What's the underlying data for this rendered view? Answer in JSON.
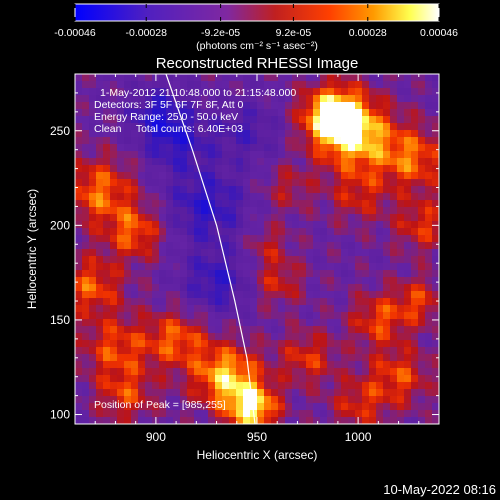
{
  "chart_data": {
    "type": "heatmap",
    "title": "Reconstructed RHESSI Image",
    "xlabel": "Heliocentric X (arcsec)",
    "ylabel": "Heliocentric Y (arcsec)",
    "xlim": [
      860,
      1040
    ],
    "ylim": [
      95,
      280
    ],
    "x_ticks": [
      900,
      950,
      1000
    ],
    "y_ticks": [
      100,
      150,
      200,
      250
    ],
    "colorbar": {
      "tick_labels": [
        "-0.00046",
        "-0.00028",
        "-9.2e-05",
        "9.2e-05",
        "0.00028",
        "0.00046"
      ],
      "tick_values": [
        -0.00046,
        -0.00028,
        -9.2e-05,
        9.2e-05,
        0.00028,
        0.00046
      ],
      "range": [
        -0.00046,
        0.00046
      ],
      "unit_label": "(photons cm⁻² s⁻¹ asec⁻²)",
      "colormap": [
        "#0000ff",
        "#6020b0",
        "#8030a0",
        "#b02020",
        "#ff4000",
        "#ffa000",
        "#ffff60",
        "#ffffff"
      ]
    },
    "annotations": {
      "time_range": "1-May-2012 21:10:48.000 to 21:15:48.000",
      "detectors": "Detectors: 3F 5F 6F 7F 8F, Att 0",
      "energy_range": "Energy Range: 25.0 - 50.0 keV",
      "clean_counts": "Clean     Total counts: 6.40E+03",
      "peak_position": "Position of Peak = [985,255]"
    },
    "peak": {
      "x": 985,
      "y": 255
    },
    "limb_curve": [
      [
        949,
        95
      ],
      [
        945,
        130
      ],
      [
        939,
        160
      ],
      [
        930,
        200
      ],
      [
        918,
        240
      ],
      [
        905,
        280
      ]
    ],
    "emission_regions": [
      {
        "x": 988,
        "y": 258,
        "intensity": 1.0,
        "spread": 11
      },
      {
        "x": 1000,
        "y": 246,
        "intensity": 0.7,
        "spread": 14
      },
      {
        "x": 1028,
        "y": 235,
        "intensity": 0.55,
        "spread": 12
      },
      {
        "x": 1032,
        "y": 200,
        "intensity": 0.45,
        "spread": 10
      },
      {
        "x": 1000,
        "y": 215,
        "intensity": 0.35,
        "spread": 10
      },
      {
        "x": 872,
        "y": 218,
        "intensity": 0.6,
        "spread": 13
      },
      {
        "x": 890,
        "y": 196,
        "intensity": 0.55,
        "spread": 10
      },
      {
        "x": 868,
        "y": 168,
        "intensity": 0.55,
        "spread": 11
      },
      {
        "x": 935,
        "y": 120,
        "intensity": 0.8,
        "spread": 12
      },
      {
        "x": 948,
        "y": 103,
        "intensity": 0.85,
        "spread": 9
      },
      {
        "x": 910,
        "y": 140,
        "intensity": 0.55,
        "spread": 11
      },
      {
        "x": 880,
        "y": 135,
        "intensity": 0.5,
        "spread": 12
      },
      {
        "x": 885,
        "y": 110,
        "intensity": 0.45,
        "spread": 10
      },
      {
        "x": 960,
        "y": 170,
        "intensity": 0.4,
        "spread": 9
      },
      {
        "x": 975,
        "y": 130,
        "intensity": 0.45,
        "spread": 10
      },
      {
        "x": 1010,
        "y": 150,
        "intensity": 0.5,
        "spread": 10
      },
      {
        "x": 1030,
        "y": 160,
        "intensity": 0.45,
        "spread": 9
      },
      {
        "x": 1020,
        "y": 120,
        "intensity": 0.5,
        "spread": 11
      },
      {
        "x": 1000,
        "y": 105,
        "intensity": 0.4,
        "spread": 10
      },
      {
        "x": 965,
        "y": 220,
        "intensity": 0.3,
        "spread": 9
      },
      {
        "x": 955,
        "y": 190,
        "intensity": 0.3,
        "spread": 8
      },
      {
        "x": 925,
        "y": 210,
        "intensity": -0.55,
        "spread": 14
      },
      {
        "x": 910,
        "y": 245,
        "intensity": -0.5,
        "spread": 12
      },
      {
        "x": 930,
        "y": 170,
        "intensity": -0.5,
        "spread": 12
      },
      {
        "x": 900,
        "y": 260,
        "intensity": -0.45,
        "spread": 10
      },
      {
        "x": 945,
        "y": 250,
        "intensity": -0.35,
        "spread": 12
      }
    ]
  },
  "footer": {
    "date": "10-May-2022 08:16"
  }
}
